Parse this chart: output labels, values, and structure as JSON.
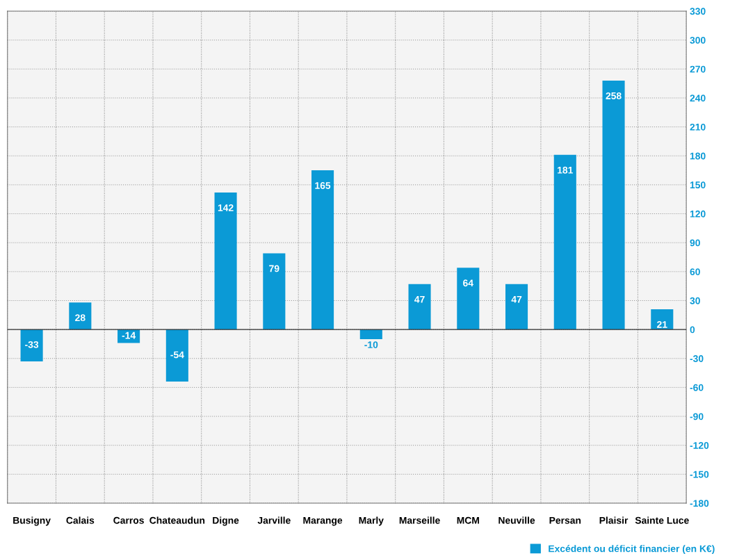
{
  "chart_data": {
    "type": "bar",
    "categories": [
      "Busigny",
      "Calais",
      "Carros",
      "Chateaudun",
      "Digne",
      "Jarville",
      "Marange",
      "Marly",
      "Marseille",
      "MCM",
      "Neuville",
      "Persan",
      "Plaisir",
      "Sainte Luce"
    ],
    "series": [
      {
        "name": "Excédent ou déficit financier (en K€)",
        "color": "#0b9ad6",
        "values": [
          -33,
          28,
          -14,
          -54,
          142,
          79,
          165,
          -10,
          47,
          64,
          47,
          181,
          258,
          21
        ]
      }
    ],
    "ylim": [
      -180,
      330
    ],
    "yticks": [
      -180,
      -150,
      -120,
      -90,
      -60,
      -30,
      0,
      30,
      60,
      90,
      120,
      150,
      180,
      210,
      240,
      270,
      300,
      330
    ],
    "ref_lines": [
      {
        "axis": "y",
        "value": 0,
        "color": "#333333"
      }
    ],
    "grid": "y",
    "legend": "bottom right",
    "data_labels": true
  }
}
